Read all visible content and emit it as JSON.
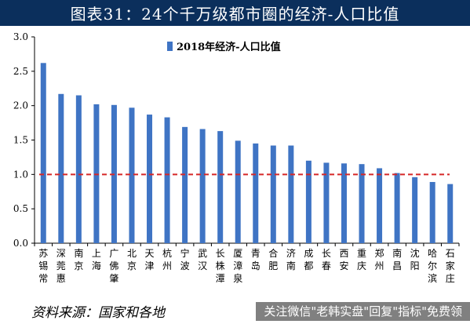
{
  "page": {
    "title": "图表31：24个千万级都市圈的经济-人口比值",
    "source_note": "资料来源：国家和各地",
    "watermark_text": "关注微信\"老韩实盘\"回复\"指标\"免费领"
  },
  "chart_data": {
    "type": "bar",
    "title": "图表31：24个千万级都市圈的经济-人口比值",
    "series": [
      {
        "name": "2018年经济-人口比值",
        "color": "#3f74c4",
        "values": [
          2.62,
          2.17,
          2.15,
          2.02,
          2.01,
          1.97,
          1.87,
          1.83,
          1.69,
          1.66,
          1.63,
          1.49,
          1.45,
          1.42,
          1.42,
          1.2,
          1.17,
          1.16,
          1.15,
          1.09,
          1.02,
          0.96,
          0.89,
          0.86
        ]
      }
    ],
    "categories": [
      "苏锡常",
      "深莞惠",
      "南京",
      "上海",
      "广佛肇",
      "北京",
      "天津",
      "杭州",
      "宁波",
      "武汉",
      "长株潭",
      "厦漳泉",
      "青岛",
      "合肥",
      "济南",
      "成都",
      "长春",
      "西安",
      "重庆",
      "郑州",
      "南昌",
      "沈阳",
      "哈尔滨",
      "石家庄"
    ],
    "yticks": [
      "0.0",
      "0.5",
      "1.0",
      "1.5",
      "2.0",
      "2.5",
      "3.0"
    ],
    "ylim": [
      0,
      3.0
    ],
    "reference_line": {
      "value": 1.0,
      "color": "#d62728",
      "style": "dashed"
    },
    "legend_position": "top-center",
    "grid": false,
    "xlabel": "",
    "ylabel": ""
  }
}
